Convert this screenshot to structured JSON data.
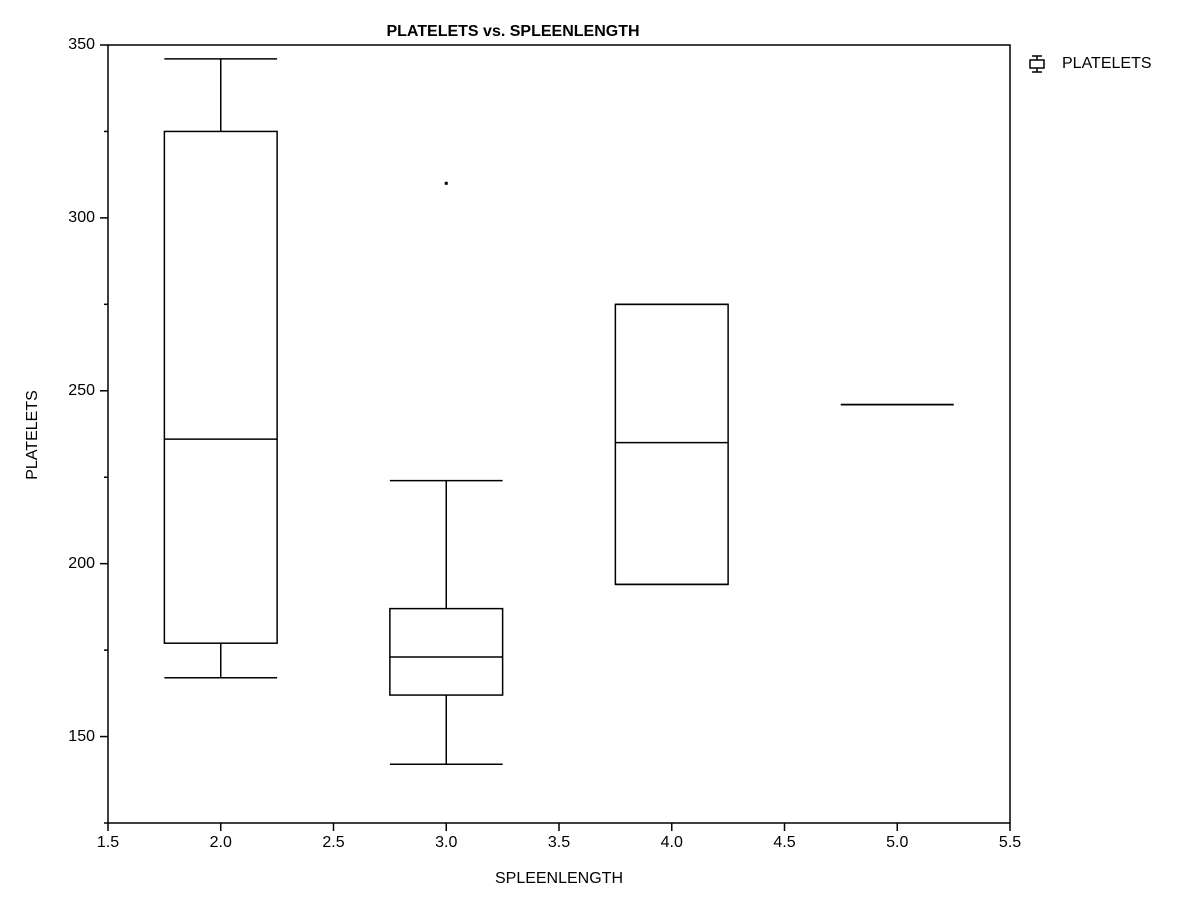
{
  "chart_data": {
    "type": "box",
    "title": "PLATELETS vs. SPLEENLENGTH",
    "xlabel": "SPLEENLENGTH",
    "ylabel": "PLATELETS",
    "xlim": [
      1.5,
      5.5
    ],
    "xticks": [
      1.5,
      {
        "value": 2,
        "label": "2.0"
      },
      2.5,
      {
        "value": 3,
        "label": "3.0"
      },
      3.5,
      {
        "value": 4,
        "label": "4.0"
      },
      4.5,
      {
        "value": 5,
        "label": "5.0"
      },
      5.5
    ],
    "ylim": [
      125,
      350
    ],
    "yticks": [
      150,
      200,
      250,
      300,
      350
    ],
    "yminorticks": [
      125,
      175,
      225,
      275,
      325
    ],
    "box_width": 0.5,
    "legend": "top-right",
    "series": [
      {
        "name": "PLATELETS",
        "color": "#000000",
        "boxes": [
          {
            "x": 2,
            "whislo": 167,
            "q1": 177,
            "med": 236,
            "q3": 325,
            "whishi": 346,
            "outliers": []
          },
          {
            "x": 3,
            "whislo": 142,
            "q1": 162,
            "med": 173,
            "q3": 187,
            "whishi": 224,
            "outliers": [
              310
            ]
          },
          {
            "x": 4,
            "whislo": 194,
            "q1": 194,
            "med": 235,
            "q3": 275,
            "whishi": 275,
            "outliers": []
          },
          {
            "x": 5,
            "whislo": 246,
            "q1": 246,
            "med": 246,
            "q3": 246,
            "whishi": 246,
            "outliers": []
          }
        ]
      }
    ]
  }
}
